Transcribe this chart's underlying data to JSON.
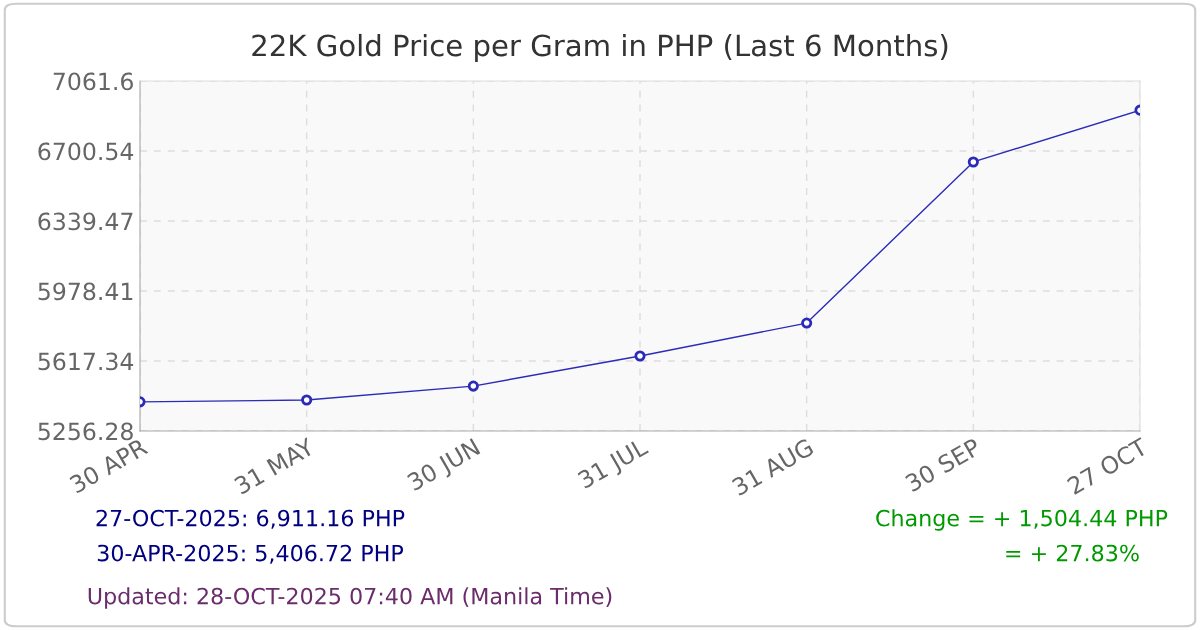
{
  "chart_data": {
    "type": "line",
    "title": "22K Gold Price per Gram in PHP (Last 6 Months)",
    "categories": [
      "30 APR",
      "31 MAY",
      "30 JUN",
      "31 JUL",
      "31 AUG",
      "30 SEP",
      "27 OCT"
    ],
    "series": [
      {
        "color": "#2b2bb8",
        "values": [
          5406.72,
          5416,
          5488,
          5643,
          5813,
          6644,
          6911.16
        ]
      }
    ],
    "ylim": [
      5256.28,
      7061.6
    ],
    "yticks": [
      5256.28,
      5617.34,
      5978.41,
      6339.47,
      6700.54,
      7061.6
    ],
    "grid": true,
    "marker": "circle",
    "line_style": "solid",
    "legend": false,
    "annotations": [
      "27-OCT-2025: 6,911.16 PHP",
      "30-APR-2025: 5,406.72 PHP",
      "Change = + 1,504.44 PHP",
      "= + 27.83%",
      "Updated: 28-OCT-2025 07:40 AM (Manila Time)"
    ]
  }
}
